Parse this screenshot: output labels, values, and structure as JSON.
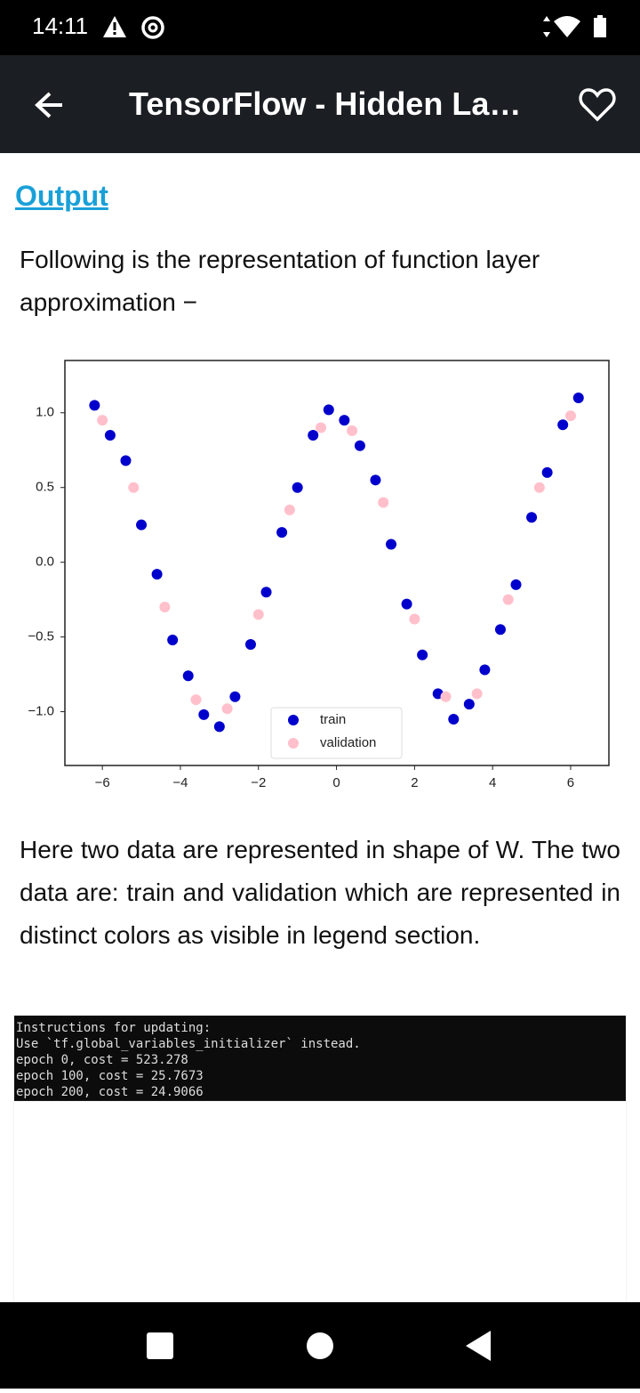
{
  "status_bar": {
    "time": "14:11"
  },
  "app_bar": {
    "title": "TensorFlow - Hidden La…"
  },
  "content": {
    "heading": "Output",
    "paragraphs": [
      "Following is the representation of function layer approximation −",
      "Here two data are represented in shape of W. The two data are: train and validation which are represented in distinct colors as visible in legend section."
    ]
  },
  "chart_data": {
    "type": "scatter",
    "xlim": [
      -6.96,
      6.98
    ],
    "xticks": [
      {
        "value": -6,
        "label": "−6"
      },
      {
        "value": -4,
        "label": "−4"
      },
      {
        "value": -2,
        "label": "−2"
      },
      0,
      2,
      4,
      6
    ],
    "ylim": [
      -1.36,
      1.35
    ],
    "yticks": [
      {
        "value": 1,
        "label": "1.0"
      },
      {
        "value": 0.5,
        "label": "0.5"
      },
      {
        "value": 0,
        "label": "0.0"
      },
      {
        "value": -0.5,
        "label": "−0.5"
      },
      {
        "value": -1,
        "label": "−1.0"
      }
    ],
    "legend": "lower center",
    "series": [
      {
        "name": "train",
        "color": "#0000cc",
        "x": [
          -6.2,
          -5.8,
          -5.4,
          -5.0,
          -4.6,
          -4.2,
          -3.8,
          -3.4,
          -3.0,
          -2.6,
          -2.2,
          -1.8,
          -1.4,
          -1.0,
          -0.6,
          -0.2,
          0.2,
          0.6,
          1.0,
          1.4,
          1.8,
          2.2,
          2.6,
          3.0,
          3.4,
          3.8,
          4.2,
          4.6,
          5.0,
          5.4,
          5.8,
          6.2
        ],
        "values": [
          1.05,
          0.85,
          0.68,
          0.25,
          -0.08,
          -0.52,
          -0.76,
          -1.02,
          -1.1,
          -0.9,
          -0.55,
          -0.2,
          0.2,
          0.5,
          0.85,
          1.02,
          0.95,
          0.78,
          0.55,
          0.12,
          -0.28,
          -0.62,
          -0.88,
          -1.05,
          -0.95,
          -0.72,
          -0.45,
          -0.15,
          0.3,
          0.6,
          0.92,
          1.1
        ]
      },
      {
        "name": "validation",
        "color": "#ffc0cb",
        "x": [
          -6.0,
          -5.2,
          -4.4,
          -3.6,
          -2.8,
          -2.0,
          -1.2,
          -0.4,
          0.4,
          1.2,
          2.0,
          2.8,
          3.6,
          4.4,
          5.2,
          6.0
        ],
        "values": [
          0.95,
          0.5,
          -0.3,
          -0.92,
          -0.98,
          -0.35,
          0.35,
          0.9,
          0.88,
          0.4,
          -0.38,
          -0.9,
          -0.88,
          -0.25,
          0.5,
          0.98
        ]
      }
    ]
  },
  "terminal": {
    "lines": [
      "Instructions for updating:",
      "Use `tf.global_variables_initializer` instead.",
      "epoch 0, cost = 523.278",
      "epoch 100, cost = 25.7673",
      "epoch 200, cost = 24.9066"
    ]
  }
}
